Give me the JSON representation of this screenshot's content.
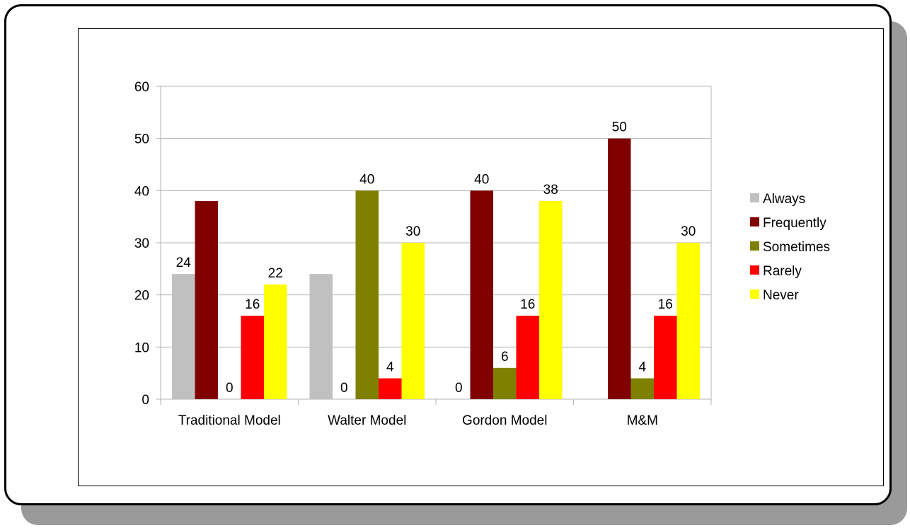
{
  "chart_data": {
    "type": "bar",
    "categories": [
      "Traditional Model",
      "Walter Model",
      "Gordon Model",
      "M&M"
    ],
    "series": [
      {
        "name": "Always",
        "color": "#c0c0c0",
        "values": [
          24,
          24,
          0,
          0
        ]
      },
      {
        "name": "Frequently",
        "color": "#800000",
        "values": [
          38,
          0,
          40,
          50
        ]
      },
      {
        "name": "Sometimes",
        "color": "#808000",
        "values": [
          0,
          40,
          6,
          4
        ]
      },
      {
        "name": "Rarely",
        "color": "#ff0000",
        "values": [
          16,
          4,
          16,
          16
        ]
      },
      {
        "name": "Never",
        "color": "#ffff00",
        "values": [
          22,
          30,
          38,
          30
        ]
      }
    ],
    "ylim": [
      0,
      60
    ],
    "yticks": [
      0,
      10,
      20,
      30,
      40,
      50,
      60
    ],
    "grid": true,
    "legend_position": "right",
    "data_labels_hidden": [
      [
        0,
        1,
        0,
        1
      ],
      [
        1,
        0,
        0,
        0
      ],
      [
        0,
        0,
        0,
        0
      ],
      [
        0,
        0,
        0,
        0
      ],
      [
        0,
        0,
        0,
        0
      ]
    ]
  }
}
